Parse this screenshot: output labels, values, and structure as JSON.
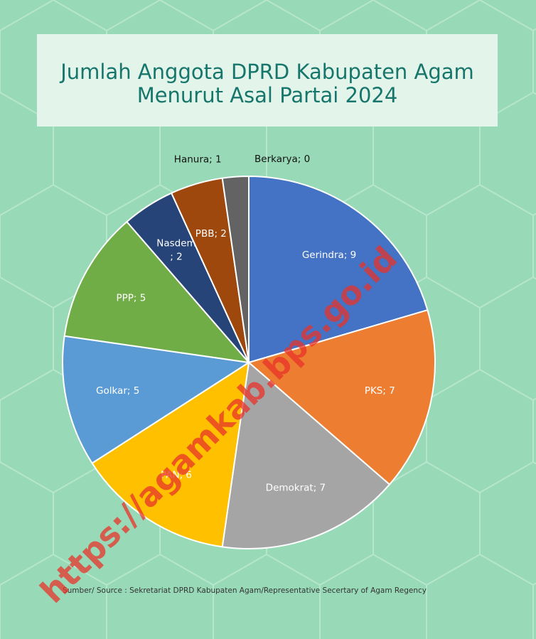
{
  "chart_data": {
    "type": "pie",
    "title": "Jumlah Anggota DPRD Kabupaten Agam Menurut Asal Partai 2024",
    "categories": [
      "Gerindra",
      "PKS",
      "Demokrat",
      "PAN",
      "Golkar",
      "PPP",
      "Nasdem",
      "PBB",
      "Hanura",
      "Berkarya"
    ],
    "values": [
      9,
      7,
      7,
      6,
      5,
      5,
      2,
      2,
      1,
      0
    ],
    "value_labels": [
      "; 9",
      "; 7",
      "; 7",
      "; 6",
      "; 5",
      "; 5",
      "; 2",
      "; 2",
      "; 1",
      "; 0"
    ],
    "colors": [
      "#4472c4",
      "#ed7d31",
      "#a5a5a5",
      "#ffc000",
      "#5b9bd5",
      "#70ad47",
      "#264478",
      "#9e480e",
      "#636363",
      "#997300"
    ],
    "source": "Sumber/ Source : Sekretariat DPRD Kabupaten Agam/Representative Secertary of Agam Regency",
    "watermark": "https://agamkab.bps.go.id"
  }
}
